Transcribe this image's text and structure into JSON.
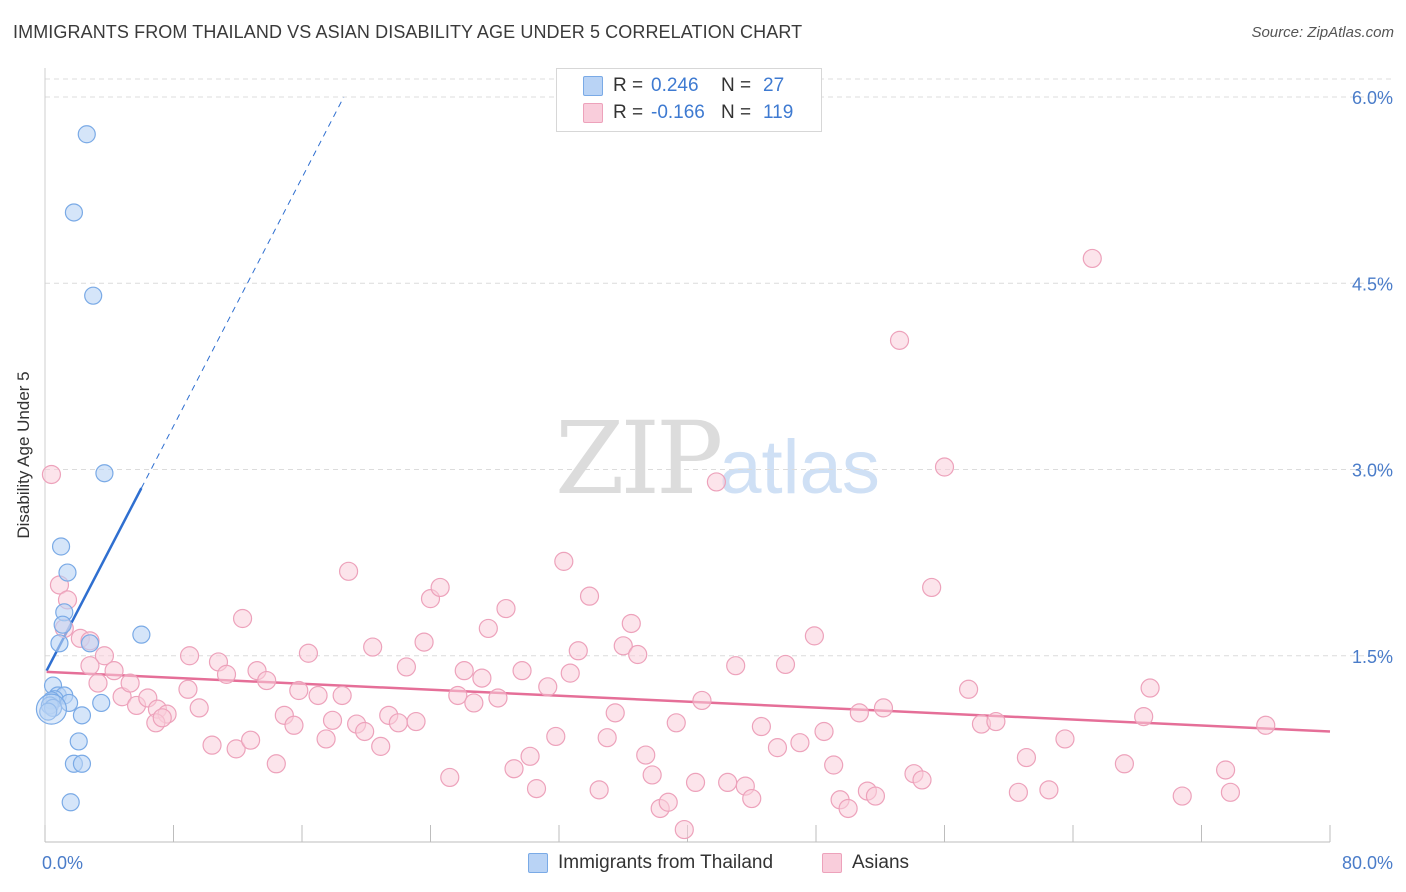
{
  "title": "IMMIGRANTS FROM THAILAND VS ASIAN DISABILITY AGE UNDER 5 CORRELATION CHART",
  "source": "Source: ZipAtlas.com",
  "watermark": {
    "zip": "ZIP",
    "atlas": "atlas"
  },
  "legend": {
    "series1": {
      "r_label": "R =",
      "r_value": "0.246",
      "n_label": "N =",
      "n_value": "27"
    },
    "series2": {
      "r_label": "R =",
      "r_value": "-0.166",
      "n_label": "N =",
      "n_value": "119"
    }
  },
  "colors": {
    "blue_fill": "#b9d3f5",
    "blue_stroke": "#7aaae6",
    "blue_line": "#2f6fd0",
    "pink_fill": "#f9cddb",
    "pink_stroke": "#eda2bb",
    "pink_line": "#e56f98",
    "tick_label": "#4a7cc9",
    "grid": "#dcdcdc"
  },
  "chart_data": {
    "type": "scatter",
    "title": "IMMIGRANTS FROM THAILAND VS ASIAN DISABILITY AGE UNDER 5 CORRELATION CHART",
    "xlabel": "",
    "ylabel": "Disability Age Under 5",
    "xlim": [
      0,
      80
    ],
    "ylim": [
      0,
      6.25
    ],
    "x_tick_labels": [
      "0.0%",
      "80.0%"
    ],
    "y_ticks": [
      1.5,
      3.0,
      4.5,
      6.0
    ],
    "y_tick_labels": [
      "1.5%",
      "3.0%",
      "4.5%",
      "6.0%"
    ],
    "grid": true,
    "series": [
      {
        "name": "Immigrants from Thailand",
        "color": "#b9d3f5",
        "trend": {
          "x": [
            0.1,
            6.0
          ],
          "y": [
            1.38,
            2.85
          ],
          "dashed_to": [
            18.6,
            6.0
          ]
        },
        "points": [
          [
            2.6,
            5.7
          ],
          [
            1.8,
            5.07
          ],
          [
            3.0,
            4.4
          ],
          [
            3.7,
            2.97
          ],
          [
            1.0,
            2.38
          ],
          [
            1.4,
            2.17
          ],
          [
            1.2,
            1.85
          ],
          [
            1.1,
            1.75
          ],
          [
            0.9,
            1.6
          ],
          [
            2.8,
            1.6
          ],
          [
            6.0,
            1.67
          ],
          [
            0.5,
            1.26
          ],
          [
            0.8,
            1.18
          ],
          [
            1.2,
            1.18
          ],
          [
            0.6,
            1.15
          ],
          [
            0.4,
            1.14
          ],
          [
            1.5,
            1.12
          ],
          [
            0.3,
            1.1
          ],
          [
            0.5,
            1.08
          ],
          [
            3.5,
            1.12
          ],
          [
            0.2,
            1.05
          ],
          [
            2.3,
            1.02
          ],
          [
            2.1,
            0.81
          ],
          [
            1.8,
            0.63
          ],
          [
            2.3,
            0.63
          ],
          [
            1.6,
            0.32
          ],
          [
            0.4,
            1.07
          ]
        ]
      },
      {
        "name": "Asians",
        "color": "#f9cddb",
        "trend": {
          "x": [
            0.1,
            80.0
          ],
          "y": [
            1.37,
            0.89
          ]
        },
        "points": [
          [
            0.4,
            2.96
          ],
          [
            0.9,
            2.07
          ],
          [
            1.4,
            1.95
          ],
          [
            1.2,
            1.72
          ],
          [
            2.2,
            1.64
          ],
          [
            2.8,
            1.62
          ],
          [
            3.7,
            1.5
          ],
          [
            4.3,
            1.38
          ],
          [
            2.8,
            1.42
          ],
          [
            3.3,
            1.28
          ],
          [
            4.8,
            1.17
          ],
          [
            5.3,
            1.28
          ],
          [
            5.7,
            1.1
          ],
          [
            6.4,
            1.16
          ],
          [
            7.0,
            1.07
          ],
          [
            7.6,
            1.03
          ],
          [
            6.9,
            0.96
          ],
          [
            7.3,
            1.0
          ],
          [
            8.9,
            1.23
          ],
          [
            9.0,
            1.5
          ],
          [
            9.6,
            1.08
          ],
          [
            10.4,
            0.78
          ],
          [
            10.8,
            1.45
          ],
          [
            11.3,
            1.35
          ],
          [
            11.9,
            0.75
          ],
          [
            12.3,
            1.8
          ],
          [
            12.8,
            0.82
          ],
          [
            13.2,
            1.38
          ],
          [
            13.8,
            1.3
          ],
          [
            14.4,
            0.63
          ],
          [
            14.9,
            1.02
          ],
          [
            15.5,
            0.94
          ],
          [
            15.8,
            1.22
          ],
          [
            16.4,
            1.52
          ],
          [
            17.0,
            1.18
          ],
          [
            17.5,
            0.83
          ],
          [
            17.9,
            0.98
          ],
          [
            18.5,
            1.18
          ],
          [
            18.9,
            2.18
          ],
          [
            19.4,
            0.95
          ],
          [
            19.9,
            0.89
          ],
          [
            20.4,
            1.57
          ],
          [
            20.9,
            0.77
          ],
          [
            21.4,
            1.02
          ],
          [
            22.0,
            0.96
          ],
          [
            22.5,
            1.41
          ],
          [
            23.1,
            0.97
          ],
          [
            23.6,
            1.61
          ],
          [
            24.0,
            1.96
          ],
          [
            24.6,
            2.05
          ],
          [
            25.2,
            0.52
          ],
          [
            25.7,
            1.18
          ],
          [
            26.1,
            1.38
          ],
          [
            26.7,
            1.12
          ],
          [
            27.2,
            1.32
          ],
          [
            27.6,
            1.72
          ],
          [
            28.2,
            1.16
          ],
          [
            28.7,
            1.88
          ],
          [
            29.2,
            0.59
          ],
          [
            29.7,
            1.38
          ],
          [
            30.2,
            0.69
          ],
          [
            30.6,
            0.43
          ],
          [
            31.3,
            1.25
          ],
          [
            31.8,
            0.85
          ],
          [
            32.3,
            2.26
          ],
          [
            32.7,
            1.36
          ],
          [
            33.2,
            1.54
          ],
          [
            33.9,
            1.98
          ],
          [
            34.5,
            0.42
          ],
          [
            35.0,
            0.84
          ],
          [
            35.5,
            1.04
          ],
          [
            36.0,
            1.58
          ],
          [
            36.5,
            1.76
          ],
          [
            36.9,
            1.51
          ],
          [
            37.4,
            0.7
          ],
          [
            37.8,
            0.54
          ],
          [
            38.3,
            0.27
          ],
          [
            38.8,
            0.32
          ],
          [
            39.3,
            0.96
          ],
          [
            39.8,
            0.1
          ],
          [
            40.5,
            0.48
          ],
          [
            40.9,
            1.14
          ],
          [
            41.8,
            2.9
          ],
          [
            42.5,
            0.48
          ],
          [
            43.0,
            1.42
          ],
          [
            43.6,
            0.45
          ],
          [
            44.0,
            0.35
          ],
          [
            44.6,
            0.93
          ],
          [
            45.6,
            0.76
          ],
          [
            46.1,
            1.43
          ],
          [
            47.0,
            0.8
          ],
          [
            47.9,
            1.66
          ],
          [
            48.5,
            0.89
          ],
          [
            49.1,
            0.62
          ],
          [
            49.5,
            0.34
          ],
          [
            50.0,
            0.27
          ],
          [
            50.7,
            1.04
          ],
          [
            51.2,
            0.41
          ],
          [
            51.7,
            0.37
          ],
          [
            52.2,
            1.08
          ],
          [
            53.2,
            4.04
          ],
          [
            54.1,
            0.55
          ],
          [
            54.6,
            0.5
          ],
          [
            55.2,
            2.05
          ],
          [
            56.0,
            3.02
          ],
          [
            57.5,
            1.23
          ],
          [
            58.3,
            0.95
          ],
          [
            59.2,
            0.97
          ],
          [
            60.6,
            0.4
          ],
          [
            61.1,
            0.68
          ],
          [
            62.5,
            0.42
          ],
          [
            63.5,
            0.83
          ],
          [
            65.2,
            4.7
          ],
          [
            67.2,
            0.63
          ],
          [
            68.4,
            1.01
          ],
          [
            68.8,
            1.24
          ],
          [
            70.8,
            0.37
          ],
          [
            73.5,
            0.58
          ],
          [
            73.8,
            0.4
          ],
          [
            76.0,
            0.94
          ]
        ]
      }
    ]
  },
  "bottom_legend": [
    {
      "label": "Immigrants from Thailand"
    },
    {
      "label": "Asians"
    }
  ]
}
